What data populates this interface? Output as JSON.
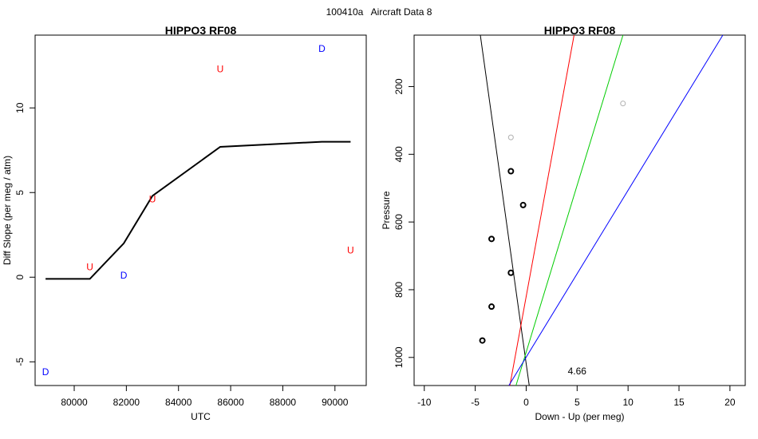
{
  "figure_title": "100410a   Aircraft Data 8",
  "chart_data": [
    {
      "type": "line",
      "title": "HIPPO3 RF08",
      "xlabel": "UTC",
      "ylabel": "Diff Slope (per meg / atm)",
      "xlim": [
        78500,
        91200
      ],
      "ylim": [
        -6.4,
        14.3
      ],
      "xticks": [
        80000,
        82000,
        84000,
        86000,
        88000,
        90000
      ],
      "yticks": [
        -5,
        0,
        5,
        10
      ],
      "line": {
        "x": [
          78900,
          80600,
          81900,
          83000,
          85600,
          89500,
          90600
        ],
        "y": [
          -0.1,
          -0.1,
          2.0,
          4.8,
          7.7,
          8.0,
          8.0
        ],
        "color": "#000000"
      },
      "letters": [
        {
          "text": "D",
          "x": 78900,
          "y": -5.6,
          "color": "#0000ff"
        },
        {
          "text": "U",
          "x": 80600,
          "y": 0.6,
          "color": "#ff0000"
        },
        {
          "text": "D",
          "x": 81900,
          "y": 0.1,
          "color": "#0000ff"
        },
        {
          "text": "U",
          "x": 83000,
          "y": 4.6,
          "color": "#ff0000"
        },
        {
          "text": "U",
          "x": 85600,
          "y": 12.3,
          "color": "#ff0000"
        },
        {
          "text": "D",
          "x": 89500,
          "y": 13.5,
          "color": "#0000ff"
        },
        {
          "text": "U",
          "x": 90600,
          "y": 1.6,
          "color": "#ff0000"
        }
      ]
    },
    {
      "type": "scatter",
      "title": "HIPPO3 RF08",
      "xlabel": "Down - Up (per meg)",
      "ylabel": "Pressure",
      "xlim": [
        -11,
        21.5
      ],
      "ylim": [
        1083,
        48
      ],
      "y_reversed": true,
      "xticks": [
        -10,
        -5,
        0,
        5,
        10,
        15,
        20
      ],
      "yticks": [
        200,
        400,
        600,
        800,
        1000
      ],
      "points": [
        {
          "x": -1.5,
          "y": 450,
          "color": "#000000"
        },
        {
          "x": -0.3,
          "y": 550,
          "color": "#000000"
        },
        {
          "x": -3.4,
          "y": 650,
          "color": "#000000"
        },
        {
          "x": -1.5,
          "y": 750,
          "color": "#000000"
        },
        {
          "x": -3.4,
          "y": 850,
          "color": "#000000"
        },
        {
          "x": -4.3,
          "y": 950,
          "color": "#000000"
        }
      ],
      "gray_points": [
        {
          "x": -1.5,
          "y": 350,
          "color": "#b0b0b0"
        },
        {
          "x": 9.5,
          "y": 250,
          "color": "#b0b0b0"
        }
      ],
      "lines": [
        {
          "x1": -4.5,
          "y1": 48,
          "x2": 0.3,
          "y2": 1083,
          "color": "#000000"
        },
        {
          "x1": 4.7,
          "y1": 48,
          "x2": -1.6,
          "y2": 1083,
          "color": "#ff0000"
        },
        {
          "x1": 9.5,
          "y1": 48,
          "x2": -1.0,
          "y2": 1083,
          "color": "#00cc00"
        },
        {
          "x1": 19.3,
          "y1": 48,
          "x2": -1.7,
          "y2": 1083,
          "color": "#0000ff"
        }
      ],
      "annotation": {
        "text": "4.66",
        "x": 5.0,
        "y": 1040
      }
    }
  ]
}
